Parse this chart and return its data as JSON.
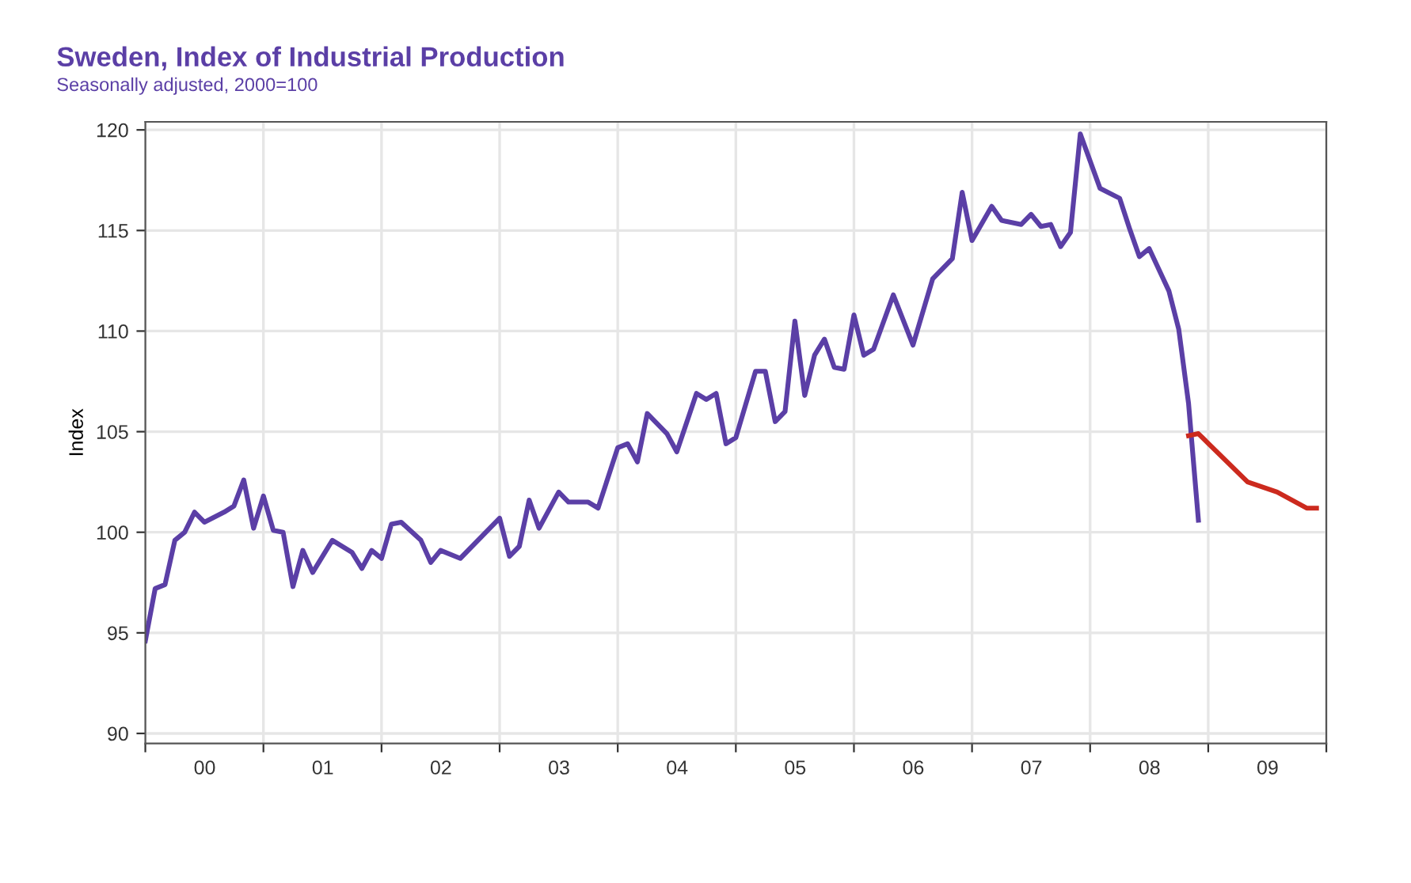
{
  "chart_data": {
    "type": "line",
    "title": "Sweden, Index of Industrial Production",
    "subtitle": "Seasonally adjusted, 2000=100",
    "ylabel": "Index",
    "series": [
      {
        "color": "#5b3fa6",
        "x": [
          "2000-01",
          "2000-02",
          "2000-03",
          "2000-04",
          "2000-05",
          "2000-06",
          "2000-07",
          "2000-09",
          "2000-10",
          "2000-11",
          "2000-12",
          "2001-01",
          "2001-02",
          "2001-03",
          "2001-04",
          "2001-05",
          "2001-06",
          "2001-08",
          "2001-10",
          "2001-11",
          "2001-12",
          "2002-01",
          "2002-02",
          "2002-03",
          "2002-05",
          "2002-06",
          "2002-07",
          "2002-09",
          "2003-01",
          "2003-02",
          "2003-03",
          "2003-04",
          "2003-05",
          "2003-07",
          "2003-08",
          "2003-10",
          "2003-11",
          "2004-01",
          "2004-02",
          "2004-03",
          "2004-04",
          "2004-06",
          "2004-07",
          "2004-09",
          "2004-10",
          "2004-11",
          "2004-12",
          "2005-01",
          "2005-03",
          "2005-04",
          "2005-05",
          "2005-06",
          "2005-07",
          "2005-08",
          "2005-09",
          "2005-10",
          "2005-11",
          "2005-12",
          "2006-01",
          "2006-02",
          "2006-03",
          "2006-05",
          "2006-07",
          "2006-09",
          "2006-11",
          "2006-12",
          "2007-01",
          "2007-03",
          "2007-04",
          "2007-06",
          "2007-07",
          "2007-08",
          "2007-09",
          "2007-10",
          "2007-11",
          "2007-12",
          "2008-02",
          "2008-04",
          "2008-05",
          "2008-06",
          "2008-07",
          "2008-09",
          "2008-10",
          "2008-11",
          "2008-12"
        ],
        "values": [
          94.6,
          97.2,
          97.4,
          99.6,
          100.0,
          101.0,
          100.5,
          101.0,
          101.3,
          102.6,
          100.2,
          101.8,
          100.1,
          100.0,
          97.3,
          99.1,
          98.0,
          99.6,
          99.0,
          98.2,
          99.1,
          98.7,
          100.4,
          100.5,
          99.6,
          98.5,
          99.1,
          98.7,
          100.7,
          98.8,
          99.3,
          101.6,
          100.2,
          102.0,
          101.5,
          101.5,
          101.2,
          104.2,
          104.4,
          103.5,
          105.9,
          104.9,
          104.0,
          106.9,
          106.6,
          106.9,
          104.4,
          104.7,
          108.0,
          108.0,
          105.5,
          106.0,
          110.5,
          106.8,
          108.8,
          109.6,
          108.2,
          108.1,
          110.8,
          108.8,
          109.1,
          111.8,
          109.3,
          112.6,
          113.6,
          116.9,
          114.5,
          116.2,
          115.5,
          115.3,
          115.8,
          115.2,
          115.3,
          114.2,
          114.9,
          119.8,
          117.1,
          116.6,
          115.1,
          113.7,
          114.1,
          112.0,
          110.1,
          106.4,
          100.6
        ]
      },
      {
        "color": "#cc2a1e",
        "x": [
          "2008-11",
          "2008-12",
          "2009-05",
          "2009-08",
          "2009-11",
          "2009-12"
        ],
        "values": [
          104.8,
          104.9,
          102.5,
          102.0,
          101.2,
          101.2
        ]
      }
    ],
    "xlim": [
      "2000-01-01",
      "2010-01-01"
    ],
    "xticks": [
      {
        "value": "2000-01-01",
        "label": null
      },
      {
        "value": "2000-07-02",
        "label": "00"
      },
      {
        "value": "2001-01-01",
        "label": null
      },
      {
        "value": "2001-07-02",
        "label": "01"
      },
      {
        "value": "2002-01-01",
        "label": null
      },
      {
        "value": "2002-07-02",
        "label": "02"
      },
      {
        "value": "2003-01-01",
        "label": null
      },
      {
        "value": "2003-07-02",
        "label": "03"
      },
      {
        "value": "2004-01-01",
        "label": null
      },
      {
        "value": "2004-07-02",
        "label": "04"
      },
      {
        "value": "2005-01-01",
        "label": null
      },
      {
        "value": "2005-07-02",
        "label": "05"
      },
      {
        "value": "2006-01-01",
        "label": null
      },
      {
        "value": "2006-07-02",
        "label": "06"
      },
      {
        "value": "2007-01-01",
        "label": null
      },
      {
        "value": "2007-07-02",
        "label": "07"
      },
      {
        "value": "2008-01-01",
        "label": null
      },
      {
        "value": "2008-07-02",
        "label": "08"
      },
      {
        "value": "2009-01-01",
        "label": null
      },
      {
        "value": "2009-07-02",
        "label": "09"
      },
      {
        "value": "2010-01-01",
        "label": null
      }
    ],
    "ylim": [
      89.5,
      120.4
    ],
    "yticks": [
      90,
      95,
      100,
      105,
      110,
      115,
      120
    ],
    "grid": true,
    "legend": false,
    "marker": "none",
    "line_style": "solid"
  }
}
